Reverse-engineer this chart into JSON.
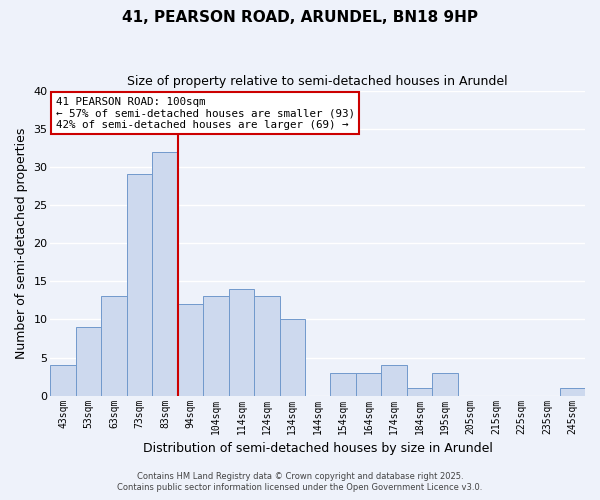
{
  "title": "41, PEARSON ROAD, ARUNDEL, BN18 9HP",
  "subtitle": "Size of property relative to semi-detached houses in Arundel",
  "xlabel": "Distribution of semi-detached houses by size in Arundel",
  "ylabel": "Number of semi-detached properties",
  "bin_labels": [
    "43sqm",
    "53sqm",
    "63sqm",
    "73sqm",
    "83sqm",
    "94sqm",
    "104sqm",
    "114sqm",
    "124sqm",
    "134sqm",
    "144sqm",
    "154sqm",
    "164sqm",
    "174sqm",
    "184sqm",
    "195sqm",
    "205sqm",
    "215sqm",
    "225sqm",
    "235sqm",
    "245sqm"
  ],
  "bar_values": [
    4,
    9,
    13,
    29,
    32,
    12,
    13,
    14,
    13,
    10,
    0,
    3,
    3,
    4,
    1,
    3,
    0,
    0,
    0,
    0,
    1
  ],
  "bar_color": "#cdd9ee",
  "bar_edge_color": "#7199cc",
  "red_line_x": 4.5,
  "ylim": [
    0,
    40
  ],
  "yticks": [
    0,
    5,
    10,
    15,
    20,
    25,
    30,
    35,
    40
  ],
  "annotation_title": "41 PEARSON ROAD: 100sqm",
  "annotation_line1": "← 57% of semi-detached houses are smaller (93)",
  "annotation_line2": "42% of semi-detached houses are larger (69) →",
  "annotation_box_color": "#ffffff",
  "annotation_box_edge_color": "#cc0000",
  "background_color": "#eef2fa",
  "grid_color": "#ffffff",
  "footer1": "Contains HM Land Registry data © Crown copyright and database right 2025.",
  "footer2": "Contains public sector information licensed under the Open Government Licence v3.0."
}
